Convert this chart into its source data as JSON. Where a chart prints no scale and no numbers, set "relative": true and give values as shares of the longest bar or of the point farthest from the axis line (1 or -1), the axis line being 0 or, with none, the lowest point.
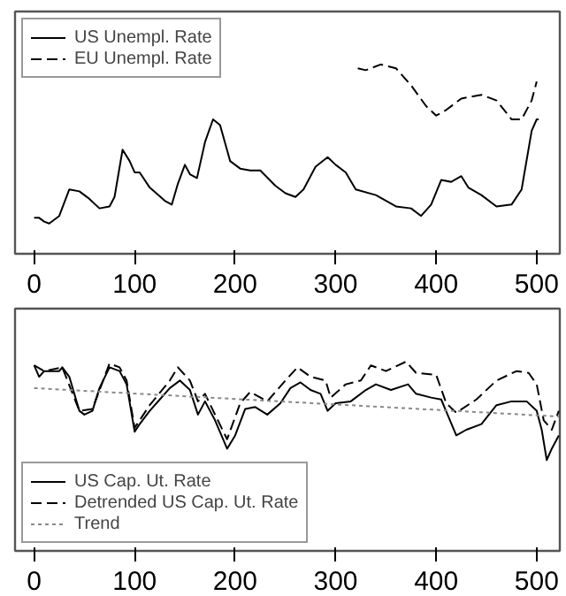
{
  "chart_data": [
    {
      "type": "line",
      "relative": true,
      "xlim": [
        -19,
        523
      ],
      "xticks": [
        0,
        100,
        200,
        300,
        400,
        500
      ],
      "legend": "top left",
      "grid": false,
      "series": [
        {
          "name": "US Unempl. Rate",
          "color": "#000000",
          "line_style": "solid",
          "x": [
            0,
            5,
            10,
            15,
            20,
            25,
            35,
            45,
            55,
            65,
            75,
            80,
            88,
            95,
            100,
            105,
            115,
            130,
            137,
            143,
            150,
            155,
            162,
            170,
            178,
            185,
            195,
            205,
            215,
            225,
            240,
            250,
            260,
            268,
            280,
            292,
            300,
            310,
            320,
            340,
            360,
            375,
            385,
            395,
            405,
            415,
            425,
            432,
            445,
            460,
            475,
            485,
            495,
            500,
            502
          ],
          "values": [
            0.19,
            0.19,
            0.17,
            0.16,
            0.18,
            0.2,
            0.34,
            0.33,
            0.29,
            0.24,
            0.25,
            0.3,
            0.55,
            0.49,
            0.43,
            0.43,
            0.35,
            0.28,
            0.26,
            0.37,
            0.47,
            0.42,
            0.4,
            0.59,
            0.71,
            0.68,
            0.49,
            0.45,
            0.44,
            0.44,
            0.36,
            0.32,
            0.3,
            0.34,
            0.46,
            0.51,
            0.47,
            0.43,
            0.34,
            0.31,
            0.25,
            0.24,
            0.2,
            0.26,
            0.39,
            0.38,
            0.41,
            0.35,
            0.31,
            0.25,
            0.26,
            0.34,
            0.65,
            0.71,
            0.71
          ]
        },
        {
          "name": "EU Unempl. Rate",
          "color": "#000000",
          "line_style": "dashed",
          "x": [
            322,
            330,
            345,
            360,
            375,
            390,
            400,
            410,
            425,
            445,
            460,
            475,
            485,
            495,
            500
          ],
          "values": [
            0.98,
            0.97,
            1.0,
            0.98,
            0.89,
            0.78,
            0.73,
            0.76,
            0.82,
            0.84,
            0.81,
            0.71,
            0.71,
            0.81,
            0.91
          ]
        }
      ]
    },
    {
      "type": "line",
      "relative": true,
      "xlim": [
        -19,
        523
      ],
      "xticks": [
        0,
        100,
        200,
        300,
        400,
        500
      ],
      "legend": "bottom left",
      "grid": false,
      "series": [
        {
          "name": "US Cap. Ut. Rate",
          "color": "#000000",
          "line_style": "solid",
          "x": [
            0,
            5,
            10,
            25,
            28,
            35,
            45,
            50,
            58,
            65,
            75,
            85,
            92,
            100,
            105,
            115,
            125,
            135,
            145,
            155,
            163,
            170,
            180,
            192,
            200,
            210,
            220,
            232,
            245,
            255,
            265,
            275,
            285,
            292,
            300,
            315,
            330,
            340,
            355,
            372,
            380,
            395,
            405,
            420,
            430,
            445,
            460,
            475,
            490,
            500,
            505,
            510,
            515,
            522
          ],
          "values": [
            0.98,
            0.92,
            0.95,
            0.95,
            0.97,
            0.92,
            0.74,
            0.72,
            0.74,
            0.86,
            0.97,
            0.95,
            0.88,
            0.63,
            0.67,
            0.74,
            0.8,
            0.86,
            0.9,
            0.85,
            0.72,
            0.79,
            0.69,
            0.54,
            0.61,
            0.75,
            0.76,
            0.72,
            0.78,
            0.86,
            0.89,
            0.85,
            0.83,
            0.74,
            0.78,
            0.79,
            0.85,
            0.88,
            0.85,
            0.88,
            0.83,
            0.81,
            0.8,
            0.61,
            0.64,
            0.67,
            0.77,
            0.79,
            0.79,
            0.74,
            0.64,
            0.48,
            0.54,
            0.61
          ]
        },
        {
          "name": "Detrended US Cap. Ut. Rate",
          "color": "#000000",
          "line_style": "dashed",
          "x": [
            0,
            10,
            28,
            45,
            58,
            75,
            85,
            92,
            100,
            115,
            135,
            143,
            155,
            163,
            170,
            180,
            192,
            205,
            215,
            232,
            250,
            262,
            275,
            290,
            295,
            310,
            325,
            335,
            350,
            370,
            380,
            400,
            410,
            420,
            440,
            460,
            480,
            492,
            500,
            507,
            515,
            522
          ],
          "values": [
            0.98,
            0.95,
            0.97,
            0.74,
            0.75,
            0.99,
            0.97,
            0.9,
            0.65,
            0.77,
            0.9,
            0.97,
            0.9,
            0.79,
            0.83,
            0.72,
            0.59,
            0.78,
            0.84,
            0.79,
            0.9,
            0.97,
            0.92,
            0.9,
            0.81,
            0.88,
            0.9,
            0.98,
            0.95,
            1.0,
            0.94,
            0.93,
            0.78,
            0.73,
            0.8,
            0.9,
            0.95,
            0.94,
            0.88,
            0.69,
            0.64,
            0.74
          ]
        },
        {
          "name": "Trend",
          "color": "#888888",
          "line_style": "dotted",
          "x": [
            0,
            522
          ],
          "values": [
            0.86,
            0.71
          ]
        }
      ]
    }
  ]
}
